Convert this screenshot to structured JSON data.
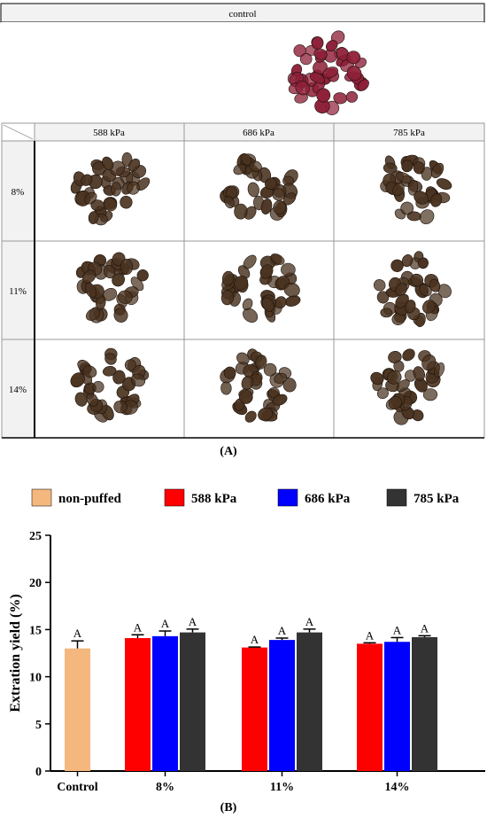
{
  "panel_a": {
    "control_label": "control",
    "columns": [
      "588 kPa",
      "686 kPa",
      "785 kPa"
    ],
    "rows": [
      "8%",
      "11%",
      "14%"
    ],
    "caption": "(A)",
    "colors": {
      "control_seeds": "#8e1f38",
      "puffed_seeds": "#4a3320"
    }
  },
  "chart_data": {
    "type": "bar",
    "caption": "(B)",
    "ylabel": "Extration yield (%)",
    "xlabel": "",
    "ylim": [
      0,
      25
    ],
    "yticks": [
      0,
      5,
      10,
      15,
      20,
      25
    ],
    "categories": [
      "Control",
      "8%",
      "11%",
      "14%"
    ],
    "legend": {
      "placement": "top"
    },
    "series": [
      {
        "name": "non-puffed",
        "color": "#f4b77e",
        "values": [
          13.0,
          null,
          null,
          null
        ],
        "errors": [
          0.8,
          null,
          null,
          null
        ],
        "letters": [
          "A",
          null,
          null,
          null
        ]
      },
      {
        "name": "588 kPa",
        "color": "#ff0000",
        "values": [
          null,
          14.1,
          13.1,
          13.5
        ],
        "errors": [
          null,
          0.35,
          0.05,
          0.1
        ],
        "letters": [
          null,
          "A",
          "A",
          "A"
        ]
      },
      {
        "name": "686 kPa",
        "color": "#0000ff",
        "values": [
          null,
          14.3,
          13.9,
          13.7
        ],
        "errors": [
          null,
          0.55,
          0.2,
          0.45
        ],
        "letters": [
          null,
          "A",
          "A",
          "A"
        ]
      },
      {
        "name": "785 kPa",
        "color": "#333333",
        "values": [
          null,
          14.7,
          14.7,
          14.2
        ],
        "errors": [
          null,
          0.35,
          0.35,
          0.15
        ],
        "letters": [
          null,
          "A",
          "A",
          "A"
        ]
      }
    ]
  }
}
